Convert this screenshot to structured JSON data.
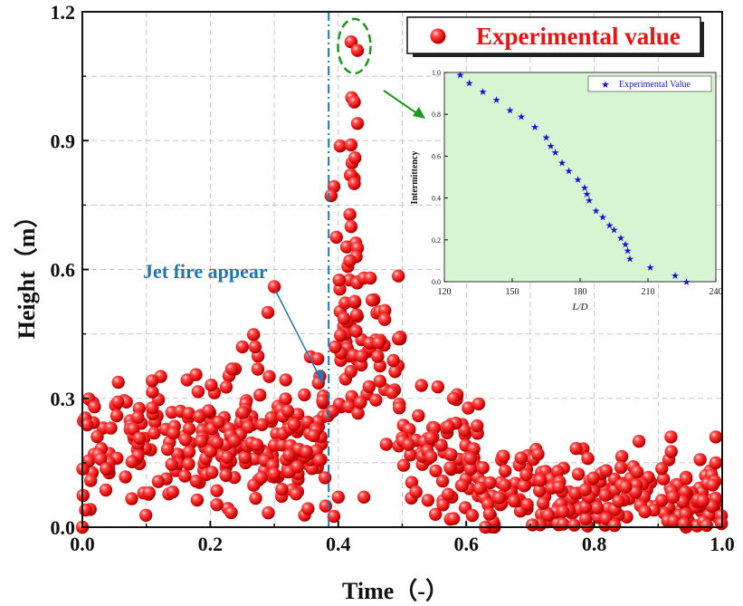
{
  "chart_data": [
    {
      "type": "scatter",
      "title": "",
      "xlabel": "Time（-）",
      "ylabel": "Height（m）",
      "xlim": [
        0.0,
        1.0
      ],
      "ylim": [
        0.0,
        1.2
      ],
      "xticks": [
        "0.0",
        "0.2",
        "0.4",
        "0.6",
        "0.8",
        "1.0"
      ],
      "yticks": [
        "0.0",
        "0.3",
        "0.6",
        "0.9",
        "1.2"
      ],
      "grid": true,
      "legend": {
        "position": "top-right",
        "entries": [
          "Experimental value"
        ]
      },
      "series": [
        {
          "name": "Experimental value",
          "style": "red sphere markers",
          "color": "#ee1111",
          "clusters": [
            {
              "note": "baseline 0.00-0.38",
              "x_range": [
                0.0,
                0.38
              ],
              "y_mean": 0.19,
              "y_spread": 0.07,
              "count": 230
            },
            {
              "note": "burst 0.20-0.38",
              "x_range": [
                0.2,
                0.38
              ],
              "y_mean": 0.28,
              "y_spread": 0.1,
              "count": 45
            },
            {
              "note": "jet column 0.38-0.43",
              "x_range": [
                0.38,
                0.43
              ],
              "y_mean": 0.5,
              "y_spread": 0.28,
              "count": 28
            },
            {
              "note": "peak 0.40-0.50",
              "x_range": [
                0.4,
                0.5
              ],
              "y_mean": 0.42,
              "y_spread": 0.09,
              "count": 60
            },
            {
              "note": "decay 0.50-0.62",
              "x_range": [
                0.5,
                0.62
              ],
              "y_mean": 0.17,
              "y_spread": 0.07,
              "count": 80
            },
            {
              "note": "tail 0.62-1.00",
              "x_range": [
                0.62,
                1.0
              ],
              "y_mean": 0.07,
              "y_spread": 0.045,
              "count": 240
            }
          ],
          "highlight_points": [
            {
              "x": 0.0,
              "y": 0.0
            },
            {
              "x": 0.005,
              "y": 0.04
            },
            {
              "x": 0.3,
              "y": 0.56
            },
            {
              "x": 0.29,
              "y": 0.5
            },
            {
              "x": 0.25,
              "y": 0.42
            },
            {
              "x": 0.27,
              "y": 0.42
            },
            {
              "x": 0.42,
              "y": 1.13
            },
            {
              "x": 0.43,
              "y": 1.11
            },
            {
              "x": 0.421,
              "y": 1.0
            },
            {
              "x": 0.425,
              "y": 0.99
            },
            {
              "x": 0.43,
              "y": 0.94
            },
            {
              "x": 0.42,
              "y": 0.89
            },
            {
              "x": 0.426,
              "y": 0.86
            },
            {
              "x": 0.42,
              "y": 0.82
            },
            {
              "x": 0.425,
              "y": 0.8
            },
            {
              "x": 0.42,
              "y": 0.7
            },
            {
              "x": 0.43,
              "y": 0.65
            },
            {
              "x": 0.428,
              "y": 0.63
            },
            {
              "x": 0.418,
              "y": 0.62
            },
            {
              "x": 0.44,
              "y": 0.58
            },
            {
              "x": 0.45,
              "y": 0.58
            },
            {
              "x": 0.395,
              "y": 0.42
            },
            {
              "x": 0.44,
              "y": 0.07
            },
            {
              "x": 0.4,
              "y": 0.07
            },
            {
              "x": 0.58,
              "y": 0.3
            },
            {
              "x": 0.53,
              "y": 0.33
            },
            {
              "x": 0.495,
              "y": 0.44
            },
            {
              "x": 0.465,
              "y": 0.34
            },
            {
              "x": 0.99,
              "y": 0.21
            },
            {
              "x": 0.92,
              "y": 0.21
            },
            {
              "x": 0.87,
              "y": 0.2
            },
            {
              "x": 0.99,
              "y": 0.15
            },
            {
              "x": 0.58,
              "y": 0.02
            },
            {
              "x": 0.63,
              "y": 0.0
            },
            {
              "x": 0.79,
              "y": 0.16
            }
          ]
        }
      ],
      "annotations": [
        {
          "text": "Jet fire appear",
          "color": "#1f77b4",
          "target_x": 0.385
        },
        {
          "type": "vline",
          "x": 0.385,
          "style": "dash-dot",
          "color": "#1f77b4"
        },
        {
          "type": "ellipse",
          "around_x": 0.425,
          "around_y": 1.12,
          "style": "dashed",
          "color": "#1a9a1a"
        }
      ]
    },
    {
      "type": "scatter",
      "note": "inset",
      "xlabel": "L/D",
      "ylabel": "Intermittency",
      "xlim": [
        120,
        240
      ],
      "ylim": [
        0.0,
        1.0
      ],
      "xticks": [
        "120",
        "150",
        "180",
        "210",
        "240"
      ],
      "yticks": [
        "0.0",
        "0.2",
        "0.4",
        "0.6",
        "0.8",
        "1.0"
      ],
      "background": "#d7f5d3",
      "legend": {
        "position": "top-right",
        "entries": [
          "Experimental Value"
        ]
      },
      "series": [
        {
          "name": "Experimental Value",
          "marker": "star",
          "color": "#1515cc",
          "x": [
            127,
            131,
            137,
            143,
            149,
            154,
            160,
            165,
            167,
            169,
            172,
            175,
            179,
            182,
            183,
            184,
            187,
            190,
            193,
            195,
            198,
            200,
            201,
            202,
            211,
            222,
            227
          ],
          "y": [
            0.99,
            0.95,
            0.91,
            0.87,
            0.82,
            0.79,
            0.74,
            0.69,
            0.65,
            0.62,
            0.57,
            0.53,
            0.49,
            0.45,
            0.42,
            0.39,
            0.34,
            0.31,
            0.27,
            0.25,
            0.21,
            0.18,
            0.15,
            0.11,
            0.07,
            0.03,
            0.0
          ]
        }
      ]
    }
  ],
  "texts": {
    "jet_label": "Jet fire appear",
    "legend_main": "Experimental value",
    "legend_inset": "Experimental Value",
    "xlabel": "Time（-）",
    "ylabel": "Height（m）",
    "inset_xlabel": "L/D",
    "inset_ylabel": "Intermittency"
  }
}
